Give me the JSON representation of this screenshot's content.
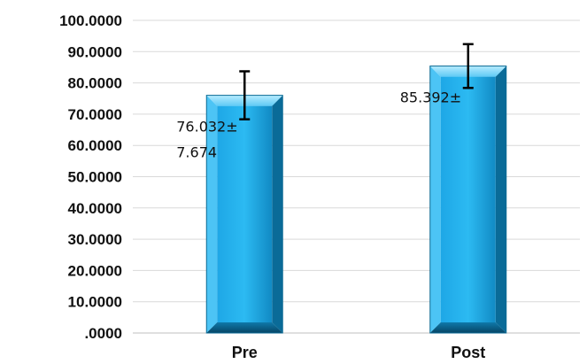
{
  "chart_data": {
    "type": "bar",
    "categories": [
      "Pre",
      "Post"
    ],
    "values": [
      76.032,
      85.392
    ],
    "error": [
      7.674,
      7.0
    ],
    "data_labels": [
      {
        "line1": "76.032±",
        "line2": "7.674"
      },
      {
        "line1": "85.392±",
        "line2": ""
      }
    ],
    "yticks": [
      0,
      10,
      20,
      30,
      40,
      50,
      60,
      70,
      80,
      90,
      100
    ],
    "ytick_labels": [
      ".0000",
      "10.0000",
      "20.0000",
      "30.0000",
      "40.0000",
      "50.0000",
      "60.0000",
      "70.0000",
      "80.0000",
      "90.0000",
      "100.0000"
    ],
    "ylim": [
      0,
      100
    ],
    "title": "",
    "xlabel": "",
    "ylabel": "",
    "grid": true,
    "bar_colors": {
      "light": "#9fe4ff",
      "mid": "#29b6f0",
      "dark": "#0a5f86",
      "edge": "#0b6a94"
    }
  }
}
